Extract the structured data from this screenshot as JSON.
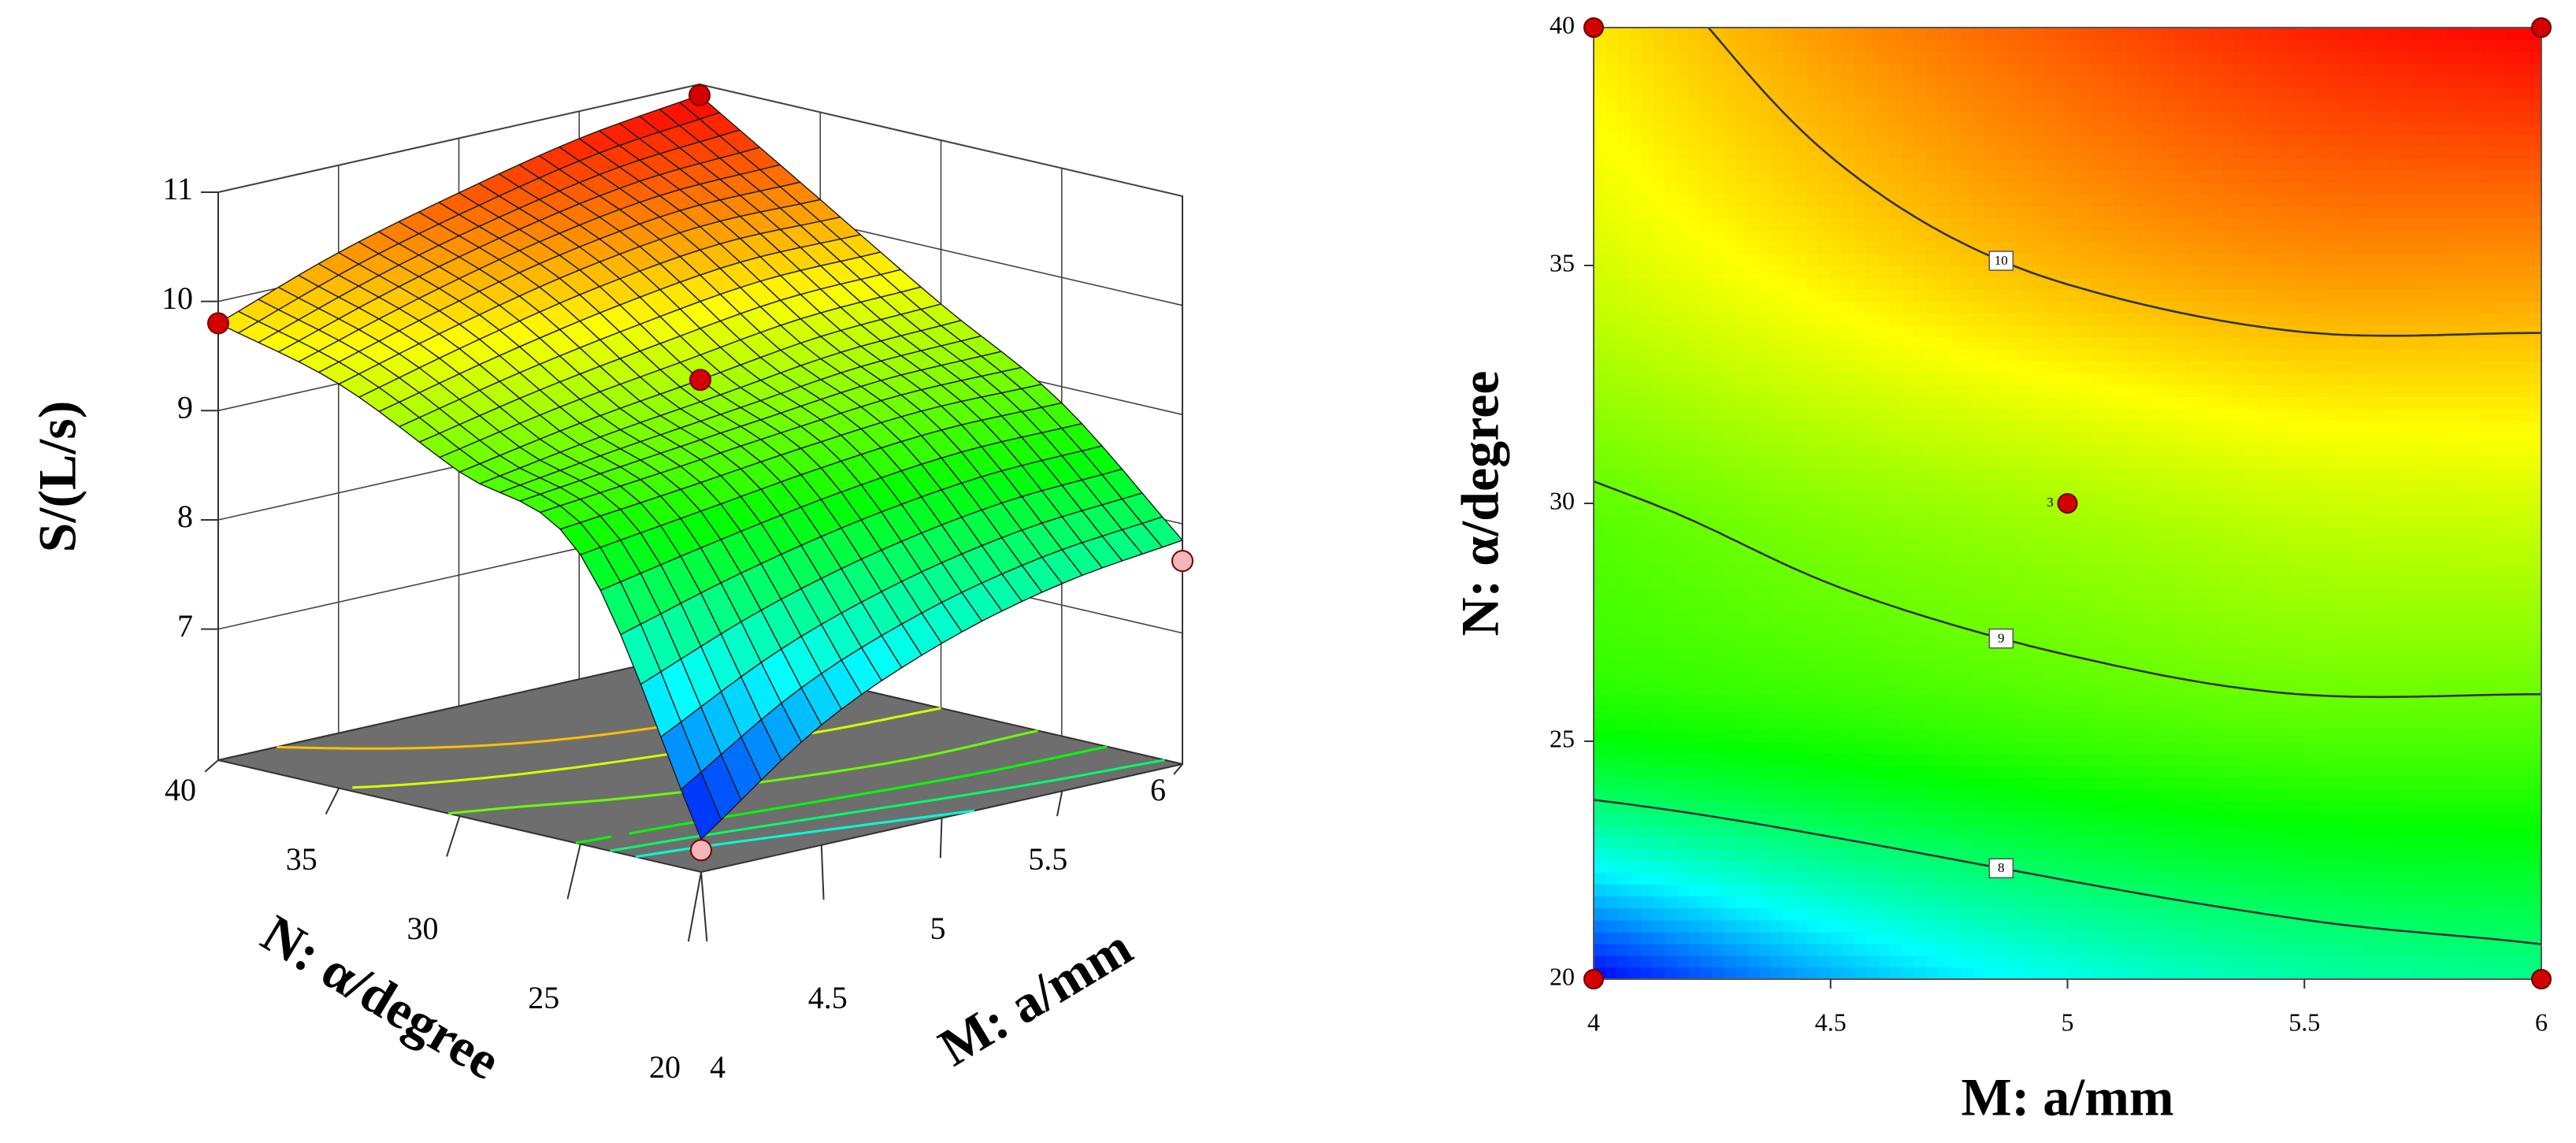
{
  "chart_data": [
    {
      "type": "surface3d",
      "x_label": "M: a/mm",
      "y_label": "N: α/degree",
      "z_label": "S/(L/s)",
      "x": [
        4,
        4.5,
        5,
        5.5,
        6
      ],
      "y": [
        20,
        25,
        30,
        35,
        40
      ],
      "z": [
        [
          6.1,
          6.9,
          7.4,
          7.7,
          7.85
        ],
        [
          8.45,
          8.6,
          8.75,
          8.85,
          8.85
        ],
        [
          8.95,
          9.15,
          9.3,
          9.45,
          9.5
        ],
        [
          9.5,
          9.8,
          10.05,
          10.2,
          10.2
        ],
        [
          9.8,
          10.2,
          10.5,
          10.75,
          10.9
        ]
      ],
      "xlim": [
        4,
        6
      ],
      "ylim": [
        20,
        40
      ],
      "zlim": [
        5.8,
        11
      ],
      "xticks": [
        4,
        4.5,
        5,
        5.5,
        6
      ],
      "yticks": [
        20,
        25,
        30,
        35,
        40
      ],
      "zticks": [
        7,
        8,
        9,
        10,
        11
      ],
      "floor_contours": [
        7.5,
        8,
        8.5,
        9,
        9.5,
        10
      ],
      "colormap": [
        "#0000ff",
        "#00ffff",
        "#00ff00",
        "#ffff00",
        "#ff0000"
      ],
      "floor_color": "#6e6e6e",
      "points": {
        "x": [
          4,
          6,
          5,
          4,
          6
        ],
        "y": [
          40,
          40,
          30,
          20,
          20
        ],
        "z": [
          9.8,
          10.9,
          9.3,
          6.0,
          7.66
        ],
        "colors": [
          "#d40000",
          "#d40000",
          "#d40000",
          "#f4b6b6",
          "#f4b6b6"
        ]
      }
    },
    {
      "type": "contour",
      "x_label": "M: a/mm",
      "y_label": "N: α/degree",
      "xlim": [
        4,
        6
      ],
      "ylim": [
        20,
        40
      ],
      "xticks": [
        4,
        4.5,
        5,
        5.5,
        6
      ],
      "yticks": [
        20,
        25,
        30,
        35,
        40
      ],
      "contour_levels": [
        8,
        9,
        10
      ],
      "colormap": [
        "#0000ff",
        "#00ffff",
        "#00ff00",
        "#ffff00",
        "#ff0000"
      ],
      "points": {
        "x": [
          4,
          6,
          4,
          6,
          5
        ],
        "y": [
          20,
          20,
          40,
          40,
          30
        ],
        "labels": [
          null,
          null,
          null,
          null,
          "3"
        ],
        "color": "#d40000"
      }
    }
  ]
}
